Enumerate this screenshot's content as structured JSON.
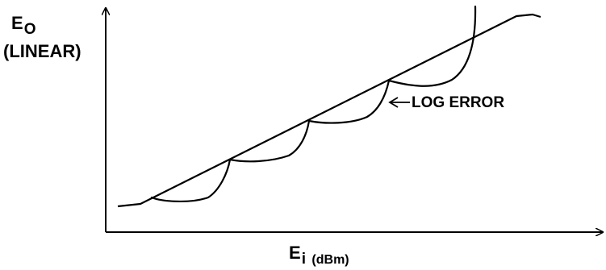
{
  "y_axis": {
    "symbol": "E",
    "subscript": "O",
    "unit": "(LINEAR)"
  },
  "x_axis": {
    "symbol": "E",
    "subscript": "i",
    "unit": "(dBm)"
  },
  "annotation": {
    "text": "LOG ERROR"
  },
  "colors": {
    "line": "#000000",
    "background": "#ffffff"
  }
}
